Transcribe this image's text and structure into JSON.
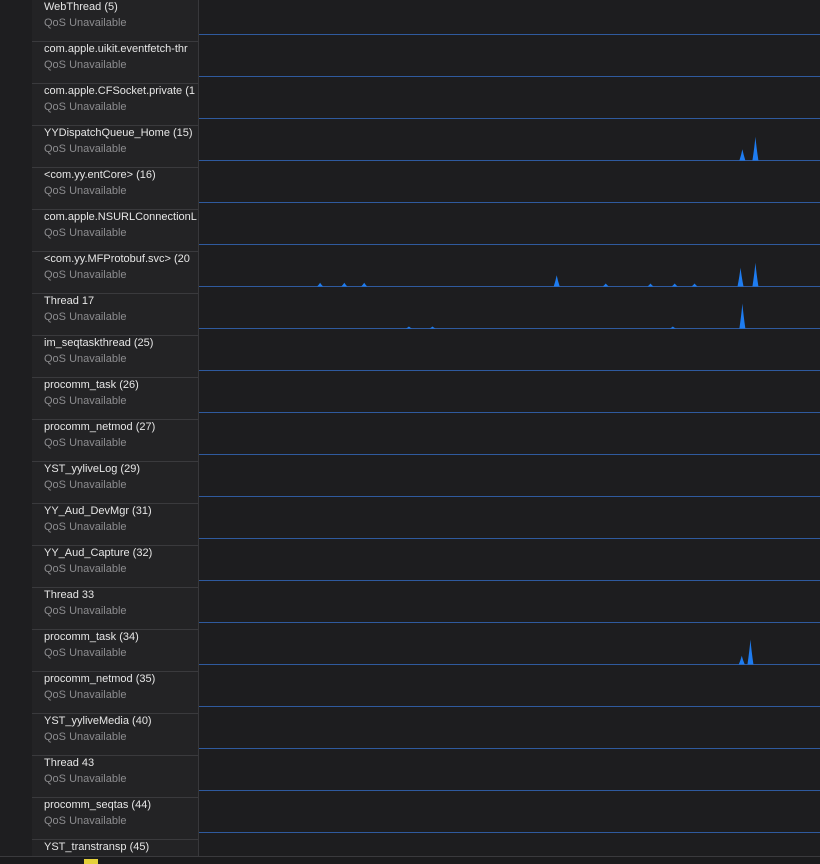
{
  "track_label_color": "#e6e6e6",
  "qos_label_color": "#8c8c8f",
  "baseline_color": "#2f5a9e",
  "spike_color": "#1e7cf0",
  "threads": [
    {
      "name": "WebThread (5)",
      "qos": "QoS Unavailable",
      "spikes": []
    },
    {
      "name": "com.apple.uikit.eventfetch-thr",
      "qos": "QoS Unavailable",
      "spikes": []
    },
    {
      "name": "com.apple.CFSocket.private (1",
      "qos": "QoS Unavailable",
      "spikes": []
    },
    {
      "name": "YYDispatchQueue_Home (15)",
      "qos": "QoS Unavailable",
      "spikes": [
        [
          0.875,
          0.45
        ],
        [
          0.896,
          0.95
        ]
      ]
    },
    {
      "name": "<com.yy.entCore> (16)",
      "qos": "QoS Unavailable",
      "spikes": []
    },
    {
      "name": "com.apple.NSURLConnectionL",
      "qos": "QoS Unavailable",
      "spikes": []
    },
    {
      "name": "<com.yy.MFProtobuf.svc> (20",
      "qos": "QoS Unavailable",
      "spikes": [
        [
          0.195,
          0.15
        ],
        [
          0.234,
          0.15
        ],
        [
          0.266,
          0.15
        ],
        [
          0.576,
          0.45
        ],
        [
          0.655,
          0.12
        ],
        [
          0.727,
          0.12
        ],
        [
          0.766,
          0.12
        ],
        [
          0.798,
          0.12
        ],
        [
          0.872,
          0.75
        ],
        [
          0.896,
          0.95
        ]
      ]
    },
    {
      "name": "Thread 17",
      "qos": "QoS Unavailable",
      "spikes": [
        [
          0.338,
          0.08
        ],
        [
          0.376,
          0.08
        ],
        [
          0.763,
          0.08
        ],
        [
          0.875,
          1.0
        ]
      ]
    },
    {
      "name": "im_seqtaskthread (25)",
      "qos": "QoS Unavailable",
      "spikes": []
    },
    {
      "name": "procomm_task (26)",
      "qos": "QoS Unavailable",
      "spikes": []
    },
    {
      "name": "procomm_netmod (27)",
      "qos": "QoS Unavailable",
      "spikes": []
    },
    {
      "name": "YST_yyliveLog (29)",
      "qos": "QoS Unavailable",
      "spikes": []
    },
    {
      "name": "YY_Aud_DevMgr (31)",
      "qos": "QoS Unavailable",
      "spikes": []
    },
    {
      "name": "YY_Aud_Capture (32)",
      "qos": "QoS Unavailable",
      "spikes": []
    },
    {
      "name": "Thread 33",
      "qos": "QoS Unavailable",
      "spikes": []
    },
    {
      "name": "procomm_task (34)",
      "qos": "QoS Unavailable",
      "spikes": [
        [
          0.874,
          0.35
        ],
        [
          0.888,
          1.0
        ]
      ]
    },
    {
      "name": "procomm_netmod (35)",
      "qos": "QoS Unavailable",
      "spikes": []
    },
    {
      "name": "YST_yyliveMedia (40)",
      "qos": "QoS Unavailable",
      "spikes": []
    },
    {
      "name": "Thread 43",
      "qos": "QoS Unavailable",
      "spikes": []
    },
    {
      "name": "procomm_seqtas (44)",
      "qos": "QoS Unavailable",
      "spikes": []
    },
    {
      "name": "YST_transtransp (45)",
      "qos": "",
      "spikes": []
    }
  ]
}
